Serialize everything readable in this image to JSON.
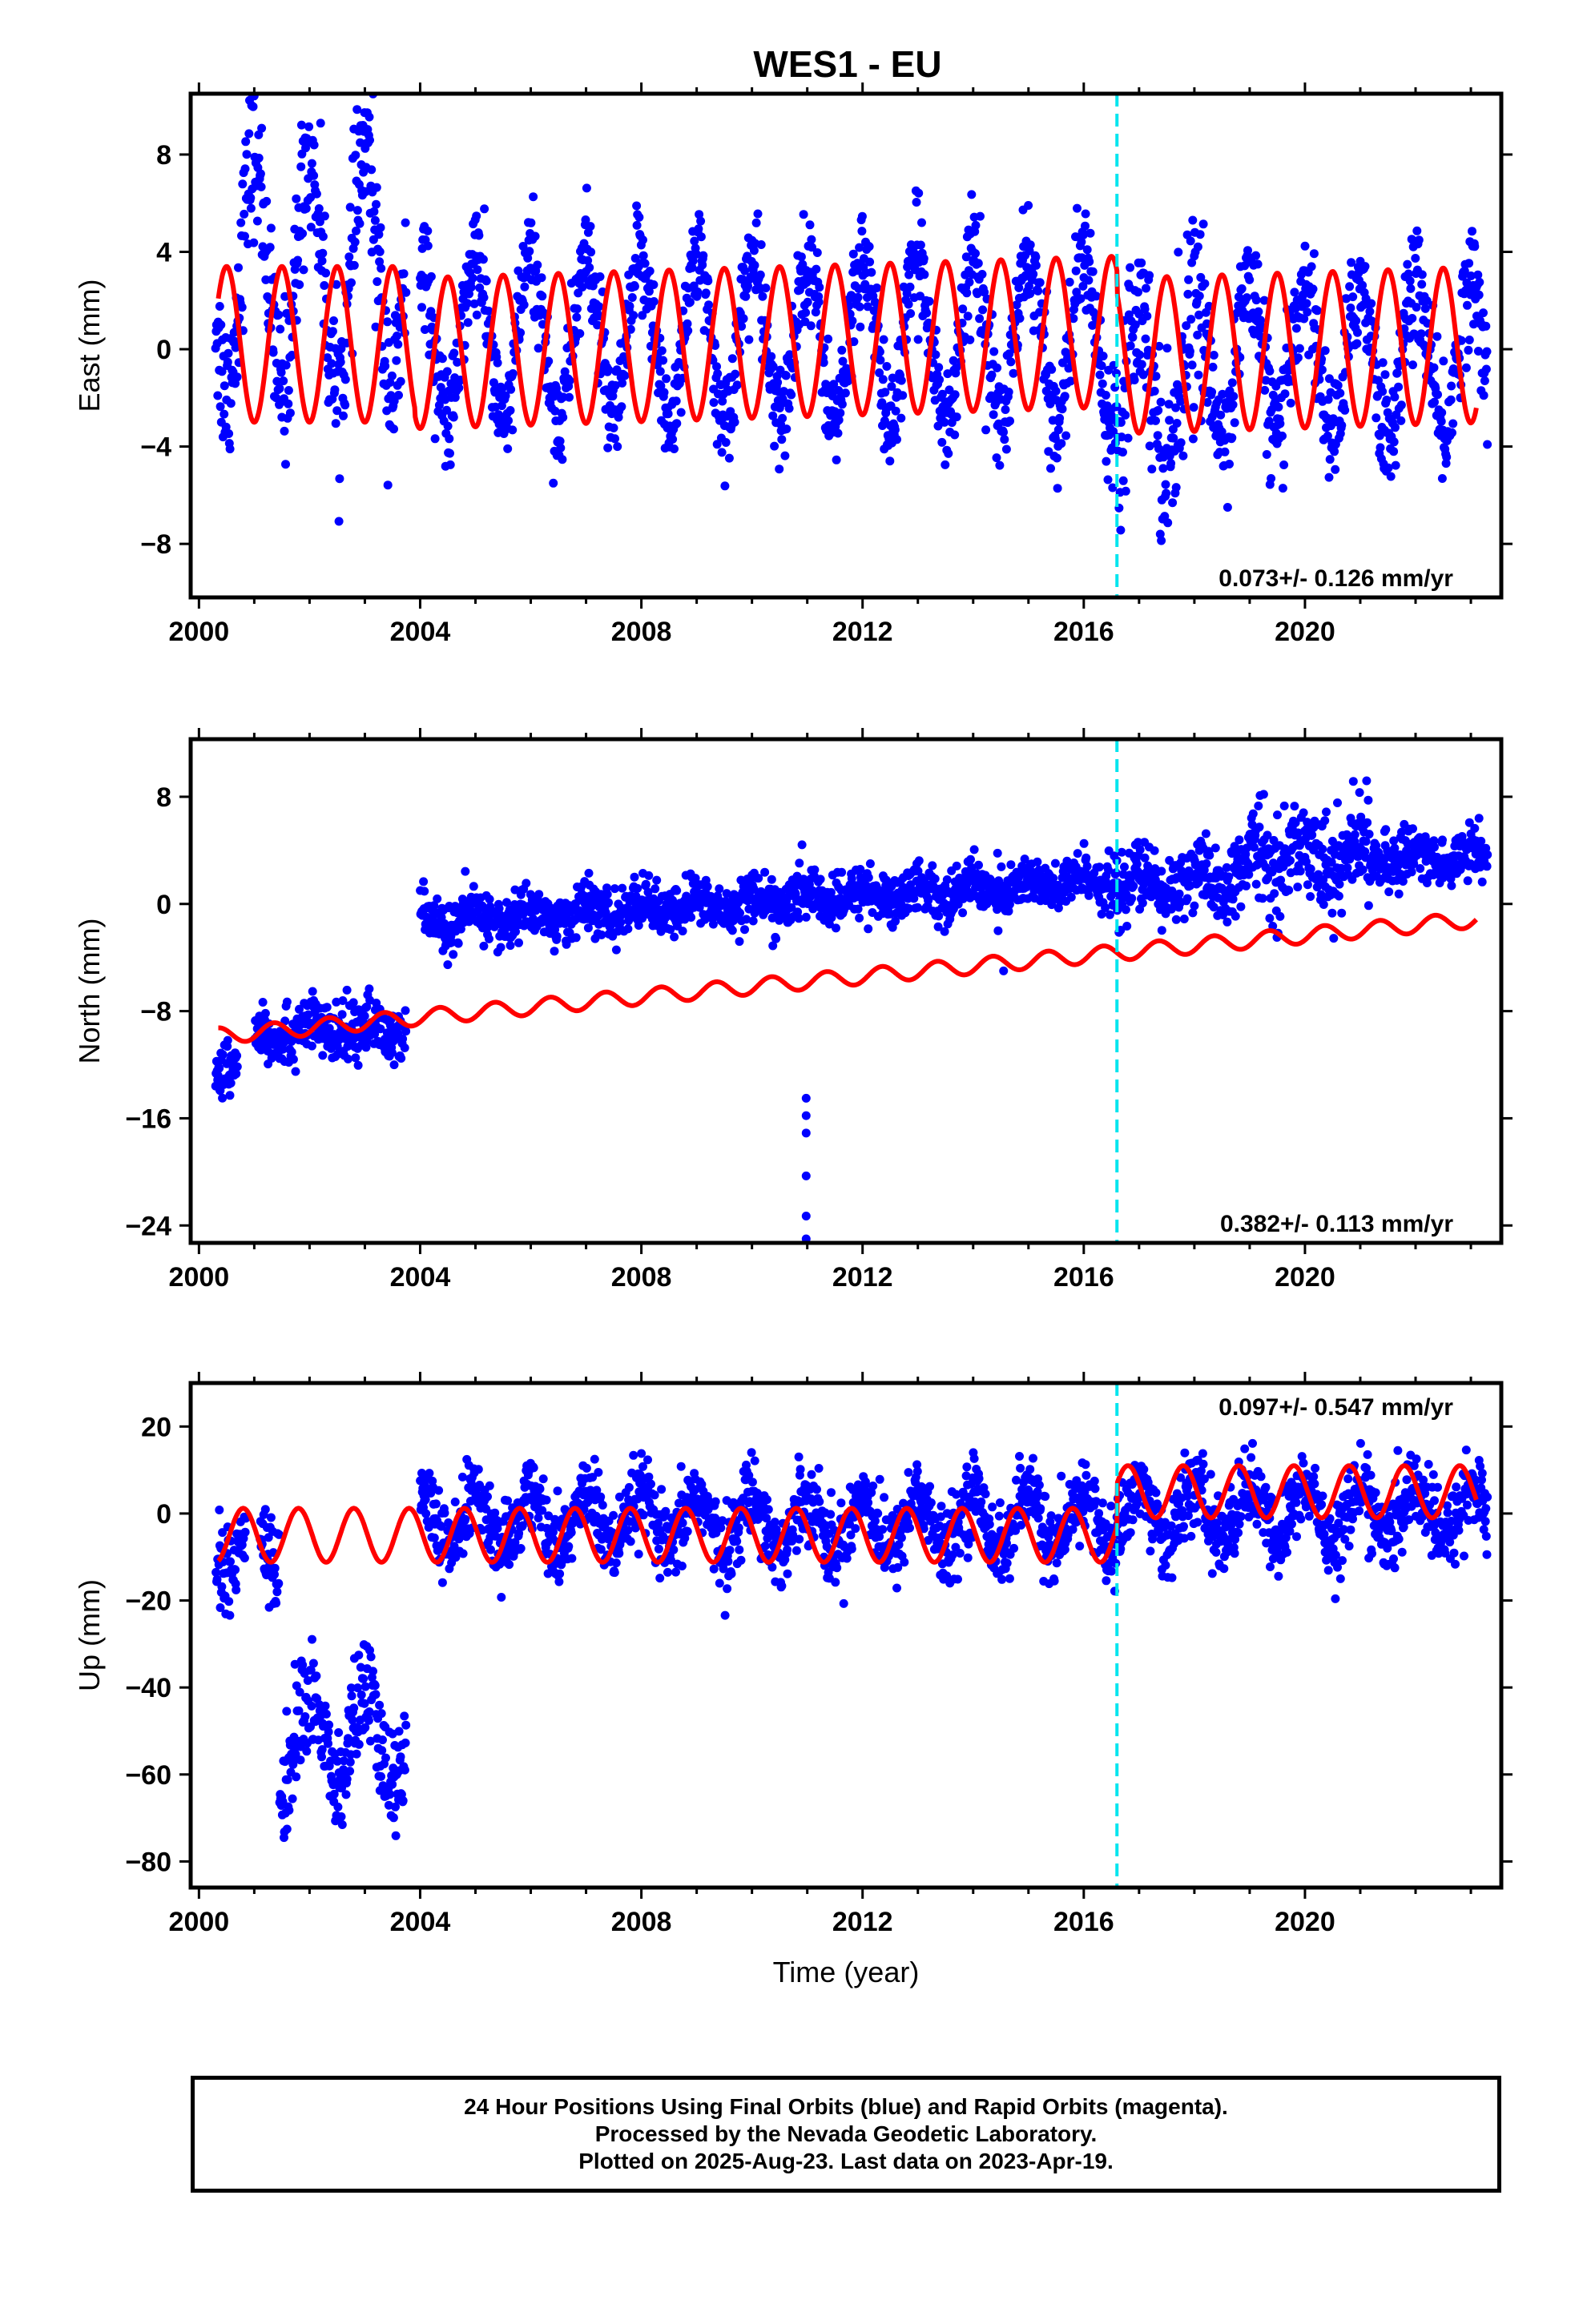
{
  "title": "WES1 - EU",
  "colors": {
    "data": "#0000ff",
    "model": "#ff0000",
    "event": "#00e5ee",
    "frame": "#000000"
  },
  "caption": {
    "line1": "24 Hour Positions Using Final Orbits (blue) and Rapid Orbits (magenta).",
    "line2": "Processed by the Nevada Geodetic Laboratory.",
    "line3": "Plotted on 2025-Aug-23. Last data on 2023-Apr-19."
  },
  "chart_data": [
    {
      "type": "scatter",
      "id": "east",
      "ylabel": "East (mm)",
      "xlabel": "",
      "xlim": [
        1999.85,
        2023.55
      ],
      "ylim": [
        -10.2,
        10.5
      ],
      "x_ticks": [
        2000,
        2004,
        2008,
        2012,
        2016,
        2020
      ],
      "x_minor_ticks": [
        2001,
        2002,
        2003,
        2005,
        2006,
        2007,
        2009,
        2010,
        2011,
        2013,
        2014,
        2015,
        2017,
        2018,
        2019,
        2021,
        2022,
        2023
      ],
      "y_ticks": [
        -8,
        -4,
        0,
        4,
        8
      ],
      "rate_label": "0.073+/- 0.126 mm/yr",
      "event_line_x": 2016.6,
      "data_start": 2000.3,
      "data_end": 2023.3,
      "model_start": 2000.35,
      "model_end": 2023.1,
      "gaps": [],
      "model": {
        "segments": [
          {
            "start": 2000.35,
            "end": 2003.9,
            "offset": 0.2,
            "amplitude": 3.2,
            "rate": 0.0,
            "annual_phase": 0.25
          },
          {
            "start": 2003.9,
            "end": 2016.6,
            "offset": 0.4,
            "amplitude": 3.1,
            "rate": 0.07,
            "annual_phase": 0.25
          },
          {
            "start": 2016.6,
            "end": 2023.1,
            "offset": -0.6,
            "amplitude": 3.2,
            "rate": 0.07,
            "annual_phase": 0.25
          }
        ]
      },
      "scatter_segments": [
        {
          "start": 2000.3,
          "end": 2003.75,
          "mean": 3.2,
          "amp": 4.8,
          "sigma": 1.6
        },
        {
          "start": 2004.0,
          "end": 2016.6,
          "mean": 0.4,
          "amp": 3.3,
          "sigma": 1.1
        },
        {
          "start": 2016.6,
          "end": 2018.2,
          "mean": -1.3,
          "amp": 3.3,
          "sigma": 1.8
        },
        {
          "start": 2018.2,
          "end": 2023.3,
          "mean": -0.4,
          "amp": 3.1,
          "sigma": 1.2
        }
      ],
      "n_points": 2400
    },
    {
      "type": "scatter",
      "id": "north",
      "ylabel": "North (mm)",
      "xlabel": "",
      "xlim": [
        1999.85,
        2023.55
      ],
      "ylim": [
        -25.3,
        12.3
      ],
      "x_ticks": [
        2000,
        2004,
        2008,
        2012,
        2016,
        2020
      ],
      "x_minor_ticks": [
        2001,
        2002,
        2003,
        2005,
        2006,
        2007,
        2009,
        2010,
        2011,
        2013,
        2014,
        2015,
        2017,
        2018,
        2019,
        2021,
        2022,
        2023
      ],
      "y_ticks": [
        -24,
        -16,
        -8,
        0,
        8
      ],
      "rate_label": "0.382+/- 0.113 mm/yr",
      "event_line_x": 2016.6,
      "data_start": 2000.3,
      "data_end": 2023.3,
      "model_start": 2000.35,
      "model_end": 2023.1,
      "gaps": [
        [
          2000.7,
          2001.0
        ]
      ],
      "outliers": [
        {
          "x": 2010.98,
          "y": -14.5
        },
        {
          "x": 2010.98,
          "y": -15.8
        },
        {
          "x": 2010.98,
          "y": -17.1
        },
        {
          "x": 2010.98,
          "y": -20.3
        },
        {
          "x": 2010.98,
          "y": -23.3
        },
        {
          "x": 2010.98,
          "y": -25.0
        },
        {
          "x": 2014.55,
          "y": -5.0
        }
      ],
      "model": {
        "segments": [
          {
            "start": 2000.35,
            "end": 2023.1,
            "offset": -5.4,
            "amplitude": 0.6,
            "rate": 0.382,
            "annual_phase": 0.1
          }
        ]
      },
      "scatter_segments": [
        {
          "start": 2000.3,
          "end": 2000.7,
          "mean": -12.0,
          "amp": 0.5,
          "sigma": 1.1,
          "trend": 0.0
        },
        {
          "start": 2001.0,
          "end": 2003.75,
          "mean": -9.6,
          "amp": 0.6,
          "sigma": 1.1,
          "trend": 0.1
        },
        {
          "start": 2004.0,
          "end": 2016.6,
          "mean": -1.4,
          "amp": 0.6,
          "sigma": 0.95,
          "trend": 0.25
        },
        {
          "start": 2016.6,
          "end": 2019.0,
          "mean": 1.2,
          "amp": 0.8,
          "sigma": 1.3,
          "trend": 0.3
        },
        {
          "start": 2019.0,
          "end": 2021.2,
          "mean": 3.6,
          "amp": 1.2,
          "sigma": 1.8,
          "trend": 0.0
        },
        {
          "start": 2021.2,
          "end": 2023.3,
          "mean": 3.5,
          "amp": 0.7,
          "sigma": 1.0,
          "trend": 0.0
        }
      ],
      "n_points": 2400
    },
    {
      "type": "scatter",
      "id": "up",
      "ylabel": "Up (mm)",
      "xlabel": "Time (year)",
      "xlim": [
        1999.85,
        2023.55
      ],
      "ylim": [
        -86,
        30
      ],
      "x_ticks": [
        2000,
        2004,
        2008,
        2012,
        2016,
        2020
      ],
      "x_minor_ticks": [
        2001,
        2002,
        2003,
        2005,
        2006,
        2007,
        2009,
        2010,
        2011,
        2013,
        2014,
        2015,
        2017,
        2018,
        2019,
        2021,
        2022,
        2023
      ],
      "y_ticks": [
        -80,
        -60,
        -40,
        -20,
        0,
        20
      ],
      "rate_label": "0.097+/- 0.547 mm/yr",
      "event_line_x": 2016.6,
      "data_start": 2000.3,
      "data_end": 2023.3,
      "model_start": 2000.35,
      "model_end": 2023.1,
      "gaps": [
        [
          2000.85,
          2001.1
        ]
      ],
      "model": {
        "segments": [
          {
            "start": 2000.35,
            "end": 2016.6,
            "offset": -5.0,
            "amplitude": 6.2,
            "rate": 0.0,
            "annual_phase": 0.55
          },
          {
            "start": 2016.6,
            "end": 2023.1,
            "offset": 5.0,
            "amplitude": 6.0,
            "rate": 0.0,
            "annual_phase": 0.55
          }
        ]
      },
      "scatter_segments": [
        {
          "start": 2000.3,
          "end": 2000.85,
          "mean": -8.0,
          "amp": 6.0,
          "sigma": 5.0
        },
        {
          "start": 2001.1,
          "end": 2001.45,
          "mean": -10.0,
          "amp": 5.0,
          "sigma": 5.5
        },
        {
          "start": 2001.45,
          "end": 2003.75,
          "mean": -52.0,
          "amp": 11.0,
          "sigma": 6.5
        },
        {
          "start": 2004.0,
          "end": 2016.6,
          "mean": -2.0,
          "amp": 6.5,
          "sigma": 4.5
        },
        {
          "start": 2016.6,
          "end": 2023.3,
          "mean": 0.0,
          "amp": 6.0,
          "sigma": 4.5
        }
      ],
      "n_points": 2400
    }
  ]
}
